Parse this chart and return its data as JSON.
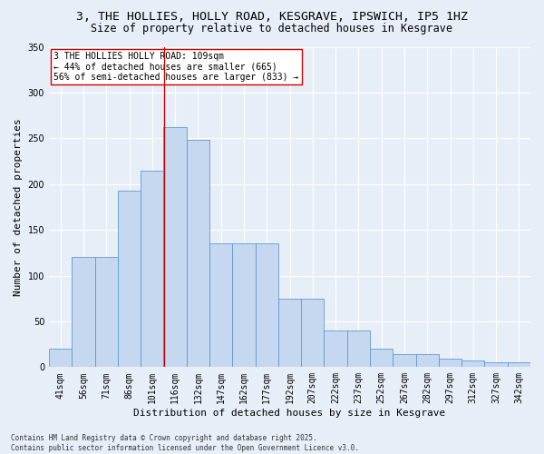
{
  "title1": "3, THE HOLLIES, HOLLY ROAD, KESGRAVE, IPSWICH, IP5 1HZ",
  "title2": "Size of property relative to detached houses in Kesgrave",
  "xlabel": "Distribution of detached houses by size in Kesgrave",
  "ylabel": "Number of detached properties",
  "bin_labels": [
    "41sqm",
    "56sqm",
    "71sqm",
    "86sqm",
    "101sqm",
    "116sqm",
    "132sqm",
    "147sqm",
    "162sqm",
    "177sqm",
    "192sqm",
    "207sqm",
    "222sqm",
    "237sqm",
    "252sqm",
    "267sqm",
    "282sqm",
    "297sqm",
    "312sqm",
    "327sqm",
    "342sqm"
  ],
  "bar_values": [
    20,
    120,
    120,
    193,
    215,
    262,
    248,
    135,
    135,
    135,
    75,
    75,
    40,
    40,
    20,
    14,
    14,
    9,
    7,
    5,
    5
  ],
  "bar_color": "#c5d8f0",
  "bar_edge_color": "#5b9bd5",
  "vline_x": 4.53,
  "vline_color": "#cc0000",
  "annotation_text": "3 THE HOLLIES HOLLY ROAD: 109sqm\n← 44% of detached houses are smaller (665)\n56% of semi-detached houses are larger (833) →",
  "annotation_box_color": "#ffffff",
  "annotation_box_edge_color": "#cc0000",
  "ylim": [
    0,
    350
  ],
  "yticks": [
    0,
    50,
    100,
    150,
    200,
    250,
    300,
    350
  ],
  "footer_text": "Contains HM Land Registry data © Crown copyright and database right 2025.\nContains public sector information licensed under the Open Government Licence v3.0.",
  "background_color": "#e8eef8",
  "grid_color": "#ffffff",
  "title_fontsize": 9.5,
  "subtitle_fontsize": 8.5,
  "axis_label_fontsize": 8,
  "tick_fontsize": 7,
  "footer_fontsize": 5.5
}
